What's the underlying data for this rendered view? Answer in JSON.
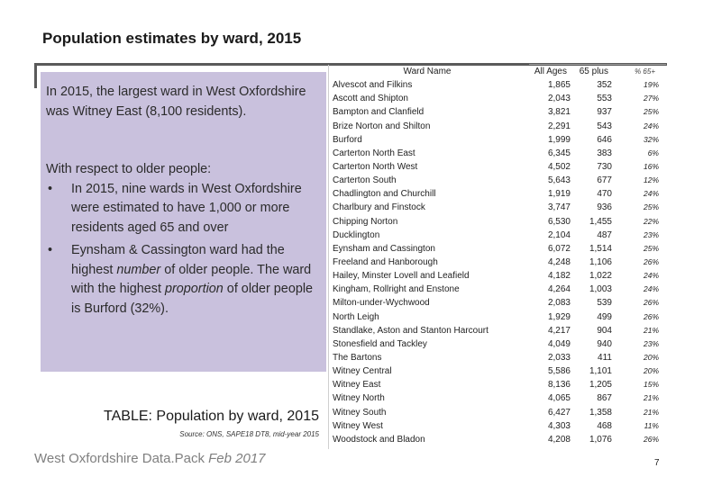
{
  "title": "Population estimates by ward, 2015",
  "panel": {
    "intro": "In 2015, the largest ward in West Oxfordshire was Witney East (8,100 residents).",
    "older_heading": "With respect to older people:",
    "bullet_symbol": "•",
    "bullet1": "In 2015, nine wards in West Oxfordshire were estimated to have 1,000 or more residents aged 65 and over",
    "bullet2_a": "Eynsham & Cassington ward had the highest ",
    "bullet2_em1": "number",
    "bullet2_b": " of older people. The ward with the highest ",
    "bullet2_em2": "proportion",
    "bullet2_c": " of older people is Burford (32%)."
  },
  "table_label": {
    "heading": "TABLE: Population by ward, 2015",
    "source": "Source: ONS, SAPE18 DT8, mid-year 2015"
  },
  "footer": {
    "brand": "West Oxfordshire Data.Pack ",
    "date": "Feb 2017"
  },
  "page_number": "7",
  "table": {
    "headers": [
      "Ward Name",
      "All Ages",
      "65 plus",
      "% 65+"
    ],
    "rows": [
      [
        "Alvescot and Filkins",
        "1,865",
        "352",
        "19%"
      ],
      [
        "Ascott and Shipton",
        "2,043",
        "553",
        "27%"
      ],
      [
        "Bampton and Clanfield",
        "3,821",
        "937",
        "25%"
      ],
      [
        "Brize Norton and Shilton",
        "2,291",
        "543",
        "24%"
      ],
      [
        "Burford",
        "1,999",
        "646",
        "32%"
      ],
      [
        "Carterton North East",
        "6,345",
        "383",
        "6%"
      ],
      [
        "Carterton North West",
        "4,502",
        "730",
        "16%"
      ],
      [
        "Carterton South",
        "5,643",
        "677",
        "12%"
      ],
      [
        "Chadlington and Churchill",
        "1,919",
        "470",
        "24%"
      ],
      [
        "Charlbury and Finstock",
        "3,747",
        "936",
        "25%"
      ],
      [
        "Chipping Norton",
        "6,530",
        "1,455",
        "22%"
      ],
      [
        "Ducklington",
        "2,104",
        "487",
        "23%"
      ],
      [
        "Eynsham and Cassington",
        "6,072",
        "1,514",
        "25%"
      ],
      [
        "Freeland and Hanborough",
        "4,248",
        "1,106",
        "26%"
      ],
      [
        "Hailey, Minster Lovell and Leafield",
        "4,182",
        "1,022",
        "24%"
      ],
      [
        "Kingham, Rollright and Enstone",
        "4,264",
        "1,003",
        "24%"
      ],
      [
        "Milton-under-Wychwood",
        "2,083",
        "539",
        "26%"
      ],
      [
        "North Leigh",
        "1,929",
        "499",
        "26%"
      ],
      [
        "Standlake, Aston and Stanton Harcourt",
        "4,217",
        "904",
        "21%"
      ],
      [
        "Stonesfield and Tackley",
        "4,049",
        "940",
        "23%"
      ],
      [
        "The Bartons",
        "2,033",
        "411",
        "20%"
      ],
      [
        "Witney Central",
        "5,586",
        "1,101",
        "20%"
      ],
      [
        "Witney East",
        "8,136",
        "1,205",
        "15%"
      ],
      [
        "Witney North",
        "4,065",
        "867",
        "21%"
      ],
      [
        "Witney South",
        "6,427",
        "1,358",
        "21%"
      ],
      [
        "Witney West",
        "4,303",
        "468",
        "11%"
      ],
      [
        "Woodstock and Bladon",
        "4,208",
        "1,076",
        "26%"
      ]
    ]
  }
}
